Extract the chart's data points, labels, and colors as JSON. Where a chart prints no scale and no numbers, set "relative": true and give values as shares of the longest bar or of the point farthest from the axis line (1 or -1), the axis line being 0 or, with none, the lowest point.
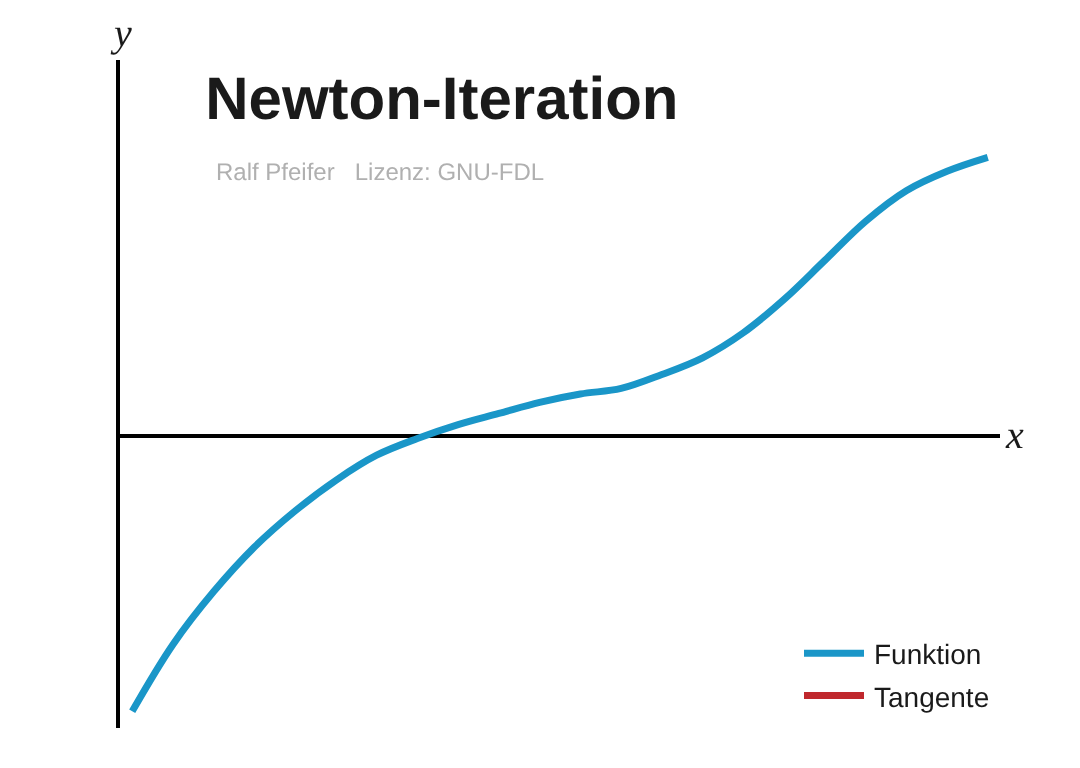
{
  "chart_data": {
    "type": "line",
    "title": "Newton-Iteration",
    "subtitle": "Ralf Pfeifer   Lizenz: GNU-FDL",
    "xlabel": "x",
    "ylabel": "y",
    "relative": true,
    "legend": "bottom right",
    "marker": "none",
    "line_style": "solid",
    "categories": [
      null,
      null,
      null,
      null,
      null,
      null,
      null,
      null,
      null,
      null,
      null,
      null,
      null,
      null,
      null,
      null,
      null,
      null,
      null,
      null,
      null,
      null
    ],
    "series": [
      {
        "name": "Funktion",
        "color": "#1a96c8",
        "values": [
          -0.99,
          -0.75,
          -0.56,
          -0.4,
          -0.27,
          -0.16,
          -0.07,
          -0.01,
          0.04,
          0.08,
          0.12,
          0.15,
          0.17,
          0.22,
          0.28,
          0.37,
          0.49,
          0.63,
          0.77,
          0.88,
          0.95,
          1.0
        ]
      },
      {
        "name": "Tangente",
        "color": "#c0282d",
        "values": [
          null,
          null,
          null,
          null,
          null,
          null,
          null,
          null,
          null,
          null,
          null,
          null,
          null,
          null,
          null,
          null,
          null,
          null,
          null,
          null,
          null,
          null
        ]
      }
    ]
  }
}
